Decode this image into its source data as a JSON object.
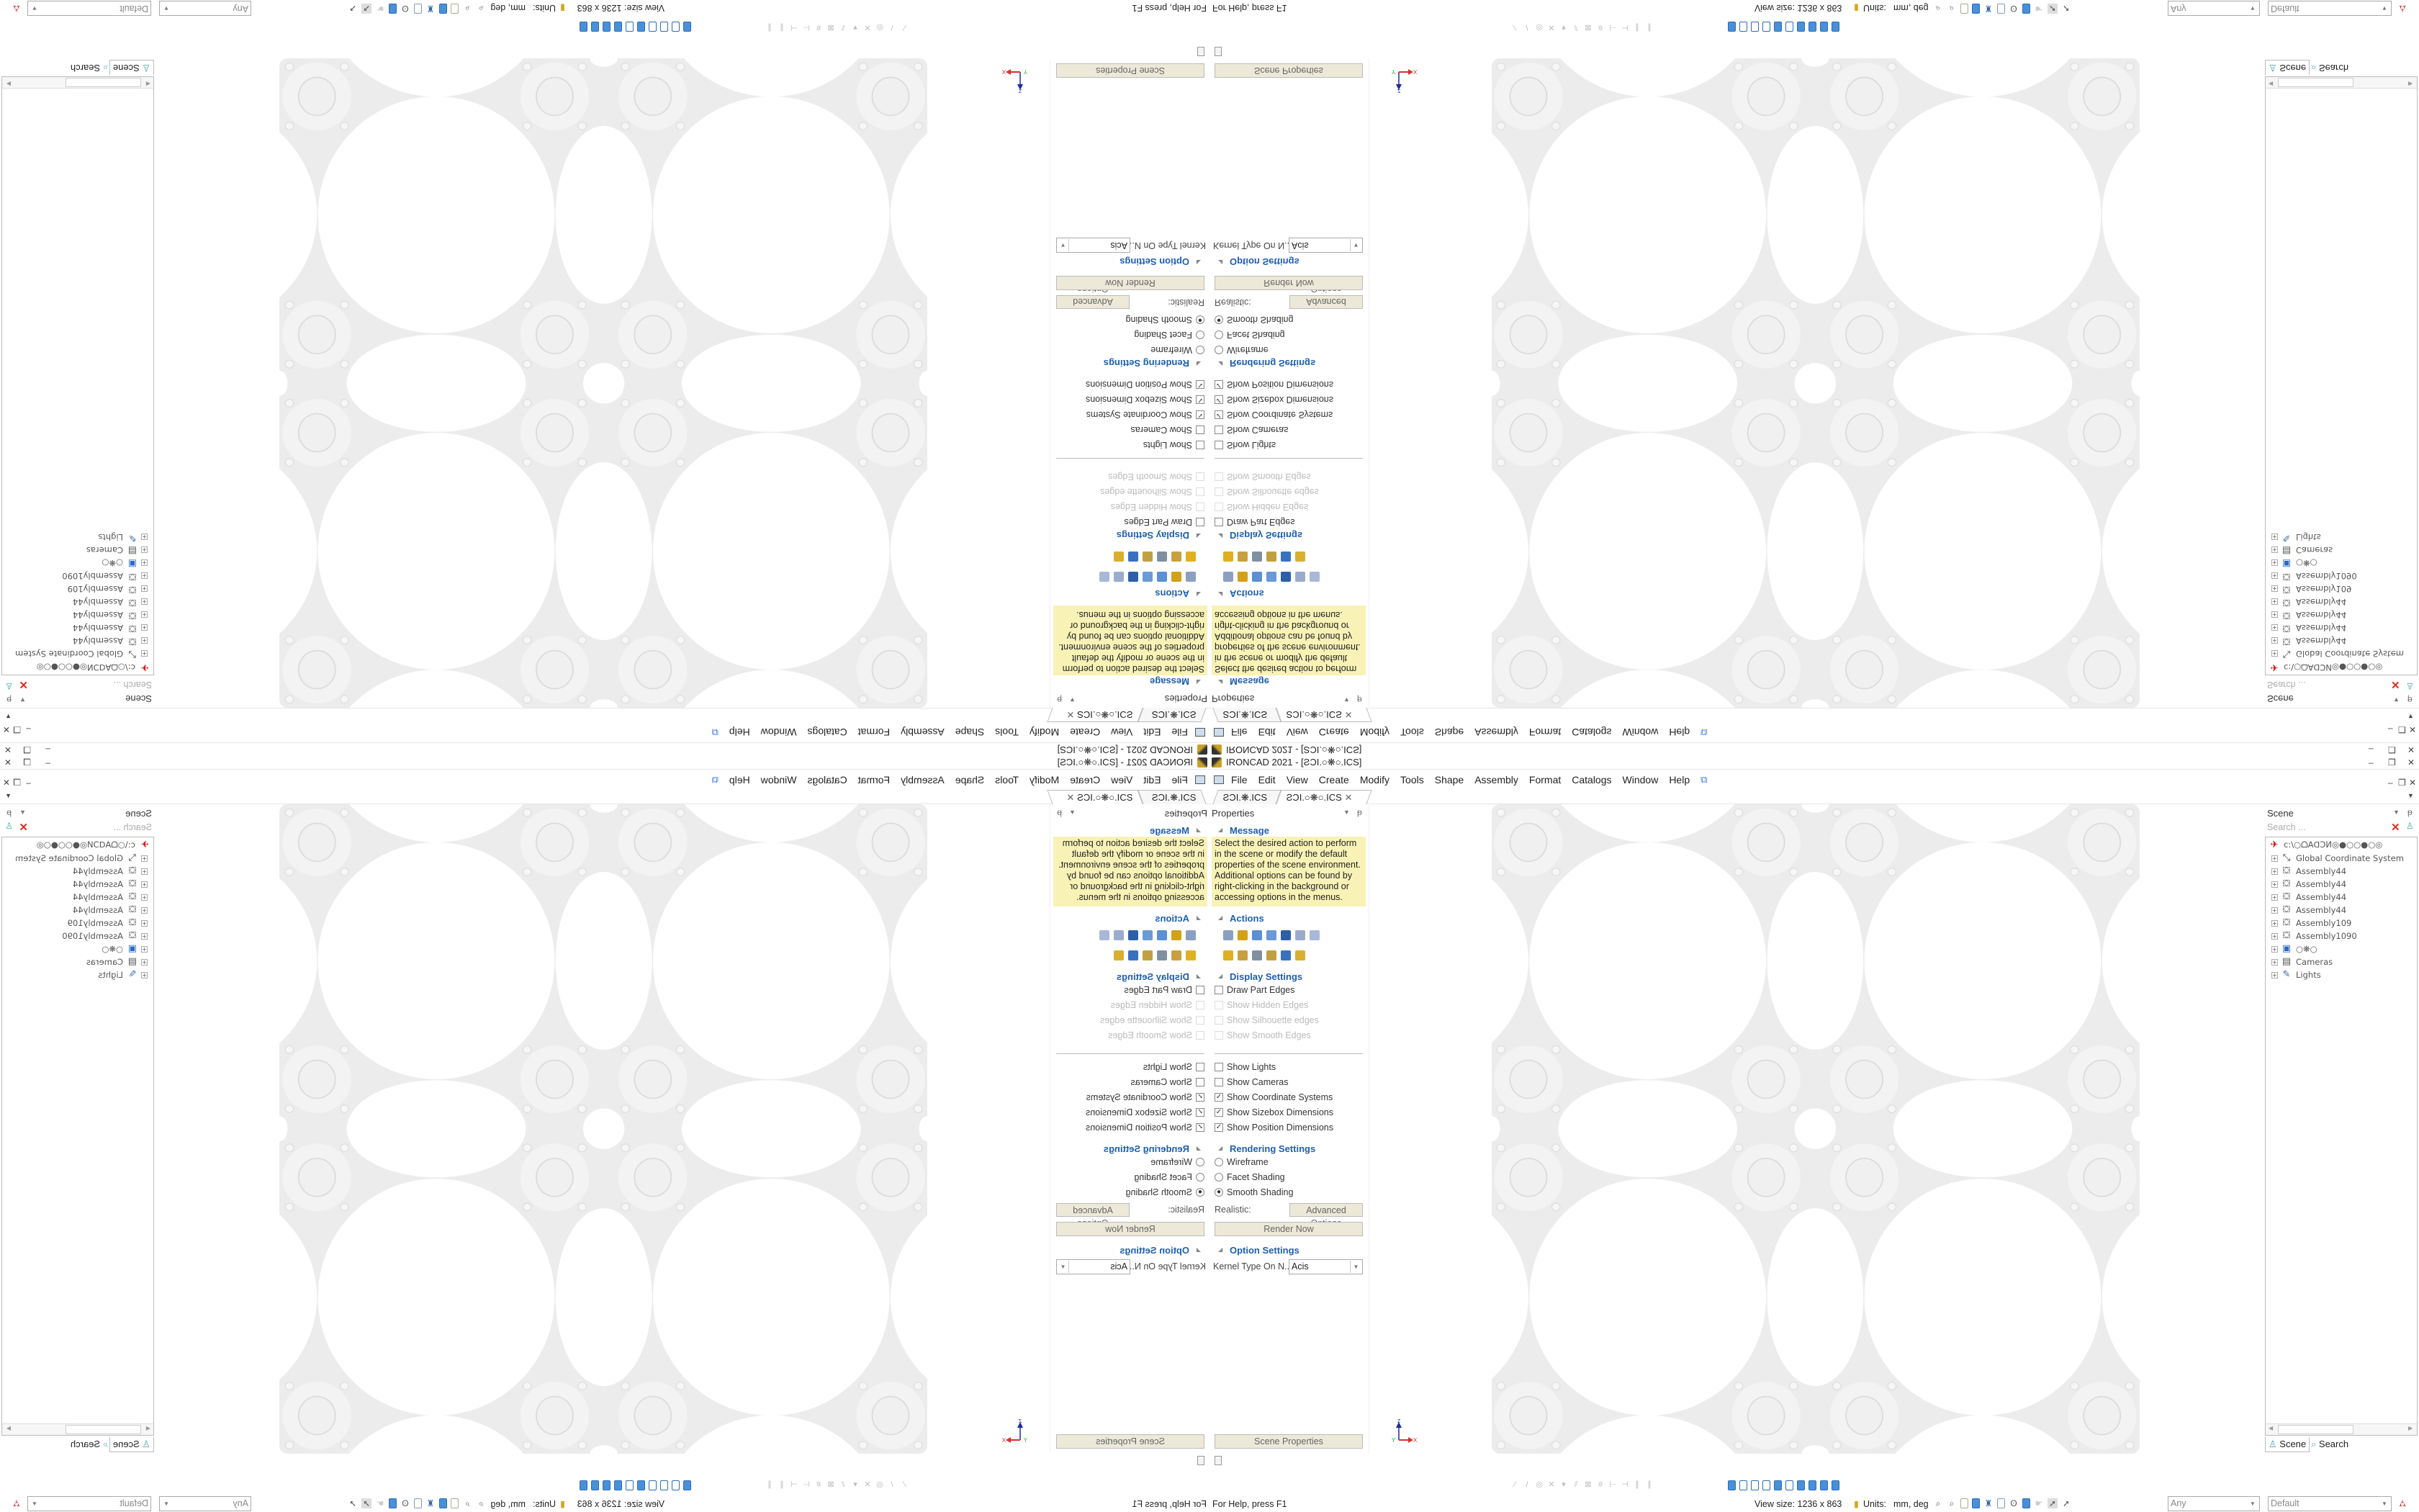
{
  "window": {
    "title": "IRONCAD 2021 - [ƧƆI.○❋○.ICS]",
    "controls": {
      "minimize": "–",
      "restore": "❐",
      "close": "✕"
    }
  },
  "menu": [
    "File",
    "Edit",
    "View",
    "Create",
    "Modify",
    "Tools",
    "Shape",
    "Assembly",
    "Format",
    "Catalogs",
    "Window",
    "Help"
  ],
  "tabs": [
    {
      "label": "ƧƆI.❋.ICS",
      "active": false
    },
    {
      "label": "ƧƆI.○❋○.ICS",
      "active": true,
      "close": "✕"
    }
  ],
  "properties": {
    "title": "Properties",
    "message_header": "Message",
    "message": "Select the desired action to perform in the scene or modify the default properties of the scene environment. Additional options can be found by right-clicking in the background or accessing options in the menus.",
    "actions_header": "Actions",
    "display_header": "Display Settings",
    "display": [
      {
        "label": "Draw Part Edges",
        "checked": false,
        "enabled": true
      },
      {
        "label": "Show Hidden Edges",
        "checked": false,
        "enabled": false
      },
      {
        "label": "Show Silhouette edges",
        "checked": false,
        "enabled": false
      },
      {
        "label": "Show Smooth Edges",
        "checked": false,
        "enabled": false
      }
    ],
    "show": [
      {
        "label": "Show Lights",
        "checked": false
      },
      {
        "label": "Show Cameras",
        "checked": false
      },
      {
        "label": "Show Coordinate Systems",
        "checked": true
      },
      {
        "label": "Show Sizebox Dimensions",
        "checked": true
      },
      {
        "label": "Show Position Dimensions",
        "checked": true
      }
    ],
    "rendering_header": "Rendering Settings",
    "rendering": [
      {
        "label": "Wireframe",
        "selected": false
      },
      {
        "label": "Facet Shading",
        "selected": false
      },
      {
        "label": "Smooth Shading",
        "selected": true
      }
    ],
    "realistic_label": "Realistic:",
    "advanced_options": "Advanced Options",
    "render_now": "Render Now",
    "option_header": "Option Settings",
    "kernel_label": "Kernel Type On N...",
    "kernel_value": "Acis",
    "scene_properties": "Scene Properties"
  },
  "scene": {
    "title": "Scene",
    "search_placeholder": "Search ...",
    "root": "c:\\○ᗝAᗡƆИ◎●○○●○◎",
    "items": [
      "Global Coordinate System",
      "Assembly44",
      "Assembly44",
      "Assembly44",
      "Assembly44",
      "Assembly109",
      "Assembly1090",
      "○❋○",
      "Cameras",
      "Lights"
    ],
    "tab_scene": "Scene",
    "tab_search": "Search"
  },
  "status": {
    "help": "For Help, press F1",
    "view_size": "View size: 1236 x 863",
    "units_label": "Units:",
    "units": "mm, deg",
    "filter": "Any",
    "style": "Default"
  },
  "triad": {
    "z": "Z",
    "x": "X",
    "y": "Y"
  },
  "colors": {
    "accent": "#1e5fb0",
    "message_bg": "#f8f2b6",
    "plate": "#ececec"
  }
}
